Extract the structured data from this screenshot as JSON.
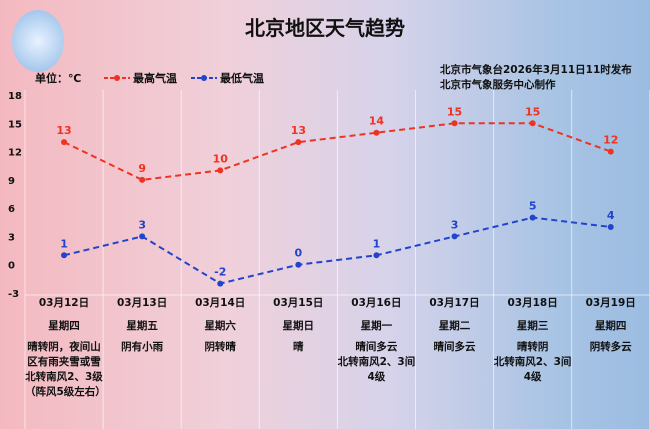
{
  "header": {
    "title": "北京地区天气趋势",
    "unit": "单位：℃",
    "publish_line1": "北京市气象台2026年3月11日11时发布",
    "publish_line2": "北京市气象服务中心制作"
  },
  "chart_data": {
    "type": "line",
    "ylim": [
      -3,
      18
    ],
    "yticks": [
      "18",
      "15",
      "12",
      "9",
      "6",
      "3",
      "0",
      "-3"
    ],
    "categories": [
      "03月12日",
      "03月13日",
      "03月14日",
      "03月15日",
      "03月16日",
      "03月17日",
      "03月18日",
      "03月19日"
    ],
    "series": [
      {
        "name": "最高气温",
        "color": "#ee3322",
        "values": [
          13,
          9,
          10,
          13,
          14,
          15,
          15,
          12
        ]
      },
      {
        "name": "最低气温",
        "color": "#2244cc",
        "values": [
          1,
          3,
          -2,
          0,
          1,
          3,
          5,
          4
        ]
      }
    ],
    "grid": true,
    "legend": "top-left"
  },
  "days": [
    {
      "date": "03月12日",
      "weekday": "星期四",
      "desc": "晴转阴，夜间山区有雨夹雪或雪\n北转南风2、3级（阵风5级左右）"
    },
    {
      "date": "03月13日",
      "weekday": "星期五",
      "desc": "阴有小雨"
    },
    {
      "date": "03月14日",
      "weekday": "星期六",
      "desc": "阴转晴"
    },
    {
      "date": "03月15日",
      "weekday": "星期日",
      "desc": "晴"
    },
    {
      "date": "03月16日",
      "weekday": "星期一",
      "desc": "晴间多云\n北转南风2、3间4级"
    },
    {
      "date": "03月17日",
      "weekday": "星期二",
      "desc": "晴间多云"
    },
    {
      "date": "03月18日",
      "weekday": "星期三",
      "desc": "晴转阴\n北转南风2、3间4级"
    },
    {
      "date": "03月19日",
      "weekday": "星期四",
      "desc": "阴转多云"
    }
  ]
}
